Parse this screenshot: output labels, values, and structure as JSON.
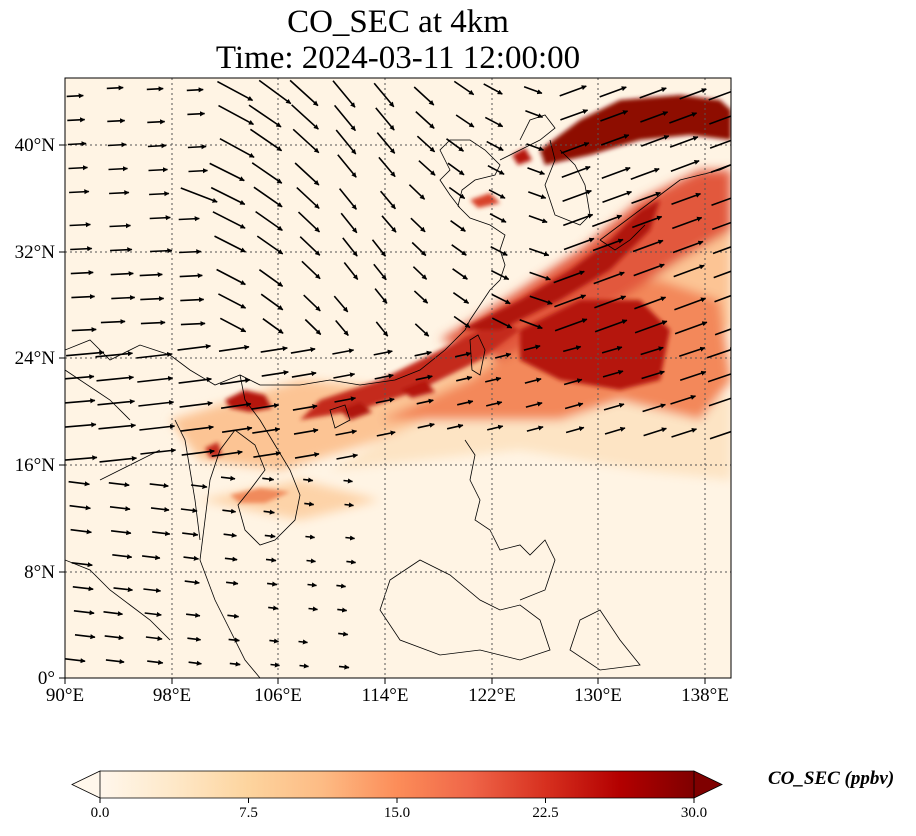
{
  "title": {
    "line1": "CO_SEC at 4km",
    "line2": "Time: 2024-03-11 12:00:00"
  },
  "map": {
    "extent_lon": [
      90,
      140
    ],
    "extent_lat": [
      0,
      45
    ],
    "lon_ticks": [
      "90°E",
      "98°E",
      "106°E",
      "114°E",
      "122°E",
      "130°E",
      "138°E"
    ],
    "lat_ticks": [
      "0°",
      "8°N",
      "16°N",
      "24°N",
      "32°N",
      "40°N"
    ],
    "gridlines": "dotted",
    "colormap": "OrRd",
    "plume_color": "#a50000",
    "wind_vector_color": "#000000"
  },
  "colorbar": {
    "label": "CO_SEC (ppbv)",
    "ticks": [
      "0.0",
      "7.5",
      "15.0",
      "22.5",
      "30.0"
    ],
    "min": 0,
    "max": 30,
    "extend": "both",
    "colors": [
      "#fff7ec",
      "#fee8c8",
      "#fdd49e",
      "#fdbb84",
      "#fc8d59",
      "#ef6548",
      "#d7301f",
      "#b30000",
      "#7f0000"
    ]
  }
}
